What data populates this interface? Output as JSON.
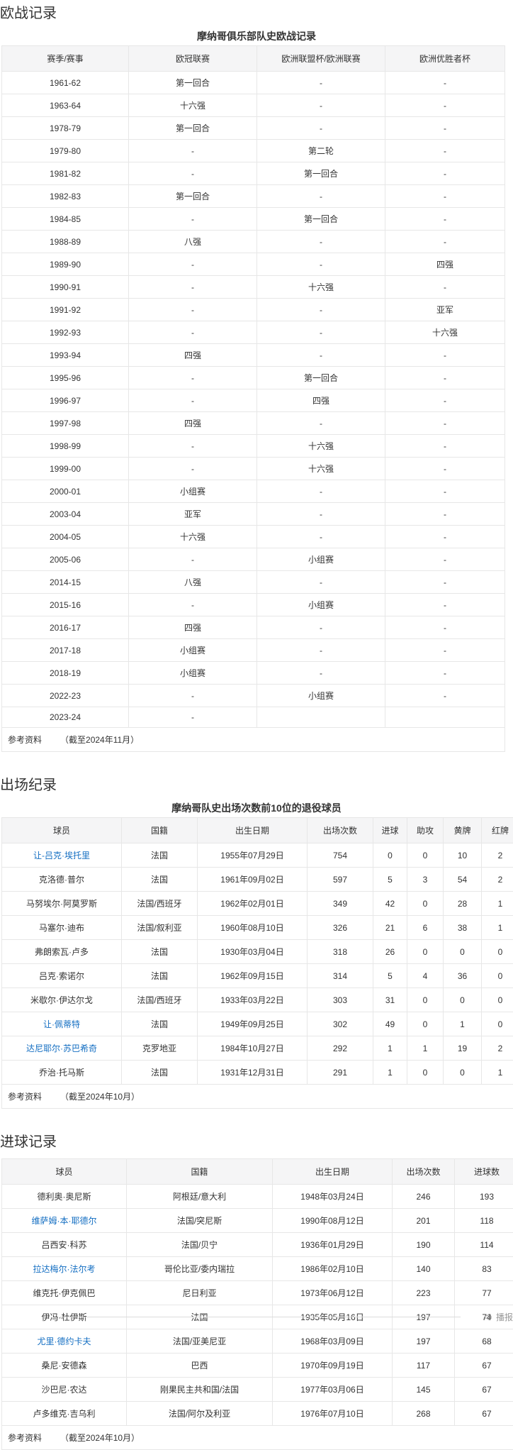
{
  "colors": {
    "link": "#136ec2",
    "header_bg": "#f5f5f6",
    "border": "#e7e7e7",
    "text": "#333333",
    "muted": "#999999"
  },
  "sections": [
    {
      "heading": "欧战记录",
      "caption": "摩纳哥俱乐部队史欧战记录",
      "columns": [
        "赛季/赛事",
        "欧冠联赛",
        "欧洲联盟杯/欧洲联赛",
        "欧洲优胜者杯"
      ],
      "rows": [
        {
          "cells": [
            "1961-62",
            "第一回合",
            "-",
            "-"
          ]
        },
        {
          "cells": [
            "1963-64",
            "十六强",
            "-",
            "-"
          ]
        },
        {
          "cells": [
            "1978-79",
            "第一回合",
            "-",
            "-"
          ]
        },
        {
          "cells": [
            "1979-80",
            "-",
            "第二轮",
            "-"
          ]
        },
        {
          "cells": [
            "1981-82",
            "-",
            "第一回合",
            "-"
          ]
        },
        {
          "cells": [
            "1982-83",
            "第一回合",
            "-",
            "-"
          ]
        },
        {
          "cells": [
            "1984-85",
            "-",
            "第一回合",
            "-"
          ]
        },
        {
          "cells": [
            "1988-89",
            "八强",
            "-",
            "-"
          ]
        },
        {
          "cells": [
            "1989-90",
            "-",
            "-",
            "四强"
          ]
        },
        {
          "cells": [
            "1990-91",
            "-",
            "十六强",
            "-"
          ]
        },
        {
          "cells": [
            "1991-92",
            "-",
            "-",
            "亚军"
          ]
        },
        {
          "cells": [
            "1992-93",
            "-",
            "-",
            "十六强"
          ]
        },
        {
          "cells": [
            "1993-94",
            "四强",
            "-",
            "-"
          ]
        },
        {
          "cells": [
            "1995-96",
            "-",
            "第一回合",
            "-"
          ]
        },
        {
          "cells": [
            "1996-97",
            "-",
            "四强",
            "-"
          ]
        },
        {
          "cells": [
            "1997-98",
            "四强",
            "-",
            "-"
          ]
        },
        {
          "cells": [
            "1998-99",
            "-",
            "十六强",
            "-"
          ]
        },
        {
          "cells": [
            "1999-00",
            "-",
            "十六强",
            "-"
          ]
        },
        {
          "cells": [
            "2000-01",
            "小组赛",
            "-",
            "-"
          ]
        },
        {
          "cells": [
            "2003-04",
            "亚军",
            "-",
            "-"
          ]
        },
        {
          "cells": [
            "2004-05",
            "十六强",
            "-",
            "-"
          ]
        },
        {
          "cells": [
            "2005-06",
            "-",
            "小组赛",
            "-"
          ]
        },
        {
          "cells": [
            "2014-15",
            "八强",
            "-",
            "-"
          ]
        },
        {
          "cells": [
            "2015-16",
            "-",
            "小组赛",
            "-"
          ]
        },
        {
          "cells": [
            "2016-17",
            "四强",
            "-",
            "-"
          ]
        },
        {
          "cells": [
            "2017-18",
            "小组赛",
            "-",
            "-"
          ]
        },
        {
          "cells": [
            "2018-19",
            "小组赛",
            "-",
            "-"
          ]
        },
        {
          "cells": [
            "2022-23",
            "-",
            "小组赛",
            "-"
          ]
        },
        {
          "cells": [
            "2023-24",
            "-",
            "",
            ""
          ]
        }
      ],
      "footer_label": "参考资料",
      "footer_note": "（截至2024年11月）"
    },
    {
      "heading": "出场纪录",
      "caption": "摩纳哥队史出场次数前10位的退役球员",
      "columns": [
        "球员",
        "国籍",
        "出生日期",
        "出场次数",
        "进球",
        "助攻",
        "黄牌",
        "红牌"
      ],
      "rows": [
        {
          "cells": [
            "让-吕克·埃托里",
            "法国",
            "1955年07月29日",
            "754",
            "0",
            "0",
            "10",
            "2"
          ],
          "link": true
        },
        {
          "cells": [
            "克洛德·普尔",
            "法国",
            "1961年09月02日",
            "597",
            "5",
            "3",
            "54",
            "2"
          ]
        },
        {
          "cells": [
            "马努埃尔·阿莫罗斯",
            "法国/西班牙",
            "1962年02月01日",
            "349",
            "42",
            "0",
            "28",
            "1"
          ]
        },
        {
          "cells": [
            "马塞尔·迪布",
            "法国/叙利亚",
            "1960年08月10日",
            "326",
            "21",
            "6",
            "38",
            "1"
          ]
        },
        {
          "cells": [
            "弗朗索瓦·卢多",
            "法国",
            "1930年03月04日",
            "318",
            "26",
            "0",
            "0",
            "0"
          ]
        },
        {
          "cells": [
            "吕克·索诺尔",
            "法国",
            "1962年09月15日",
            "314",
            "5",
            "4",
            "36",
            "0"
          ]
        },
        {
          "cells": [
            "米歇尔·伊达尔戈",
            "法国/西班牙",
            "1933年03月22日",
            "303",
            "31",
            "0",
            "0",
            "0"
          ]
        },
        {
          "cells": [
            "让·佩蒂特",
            "法国",
            "1949年09月25日",
            "302",
            "49",
            "0",
            "1",
            "0"
          ],
          "link": true
        },
        {
          "cells": [
            "达尼耶尔·苏巴希奇",
            "克罗地亚",
            "1984年10月27日",
            "292",
            "1",
            "1",
            "19",
            "2"
          ],
          "link": true
        },
        {
          "cells": [
            "乔治·托马斯",
            "法国",
            "1931年12月31日",
            "291",
            "1",
            "0",
            "0",
            "1"
          ]
        }
      ],
      "footer_label": "参考资料",
      "footer_note": "（截至2024年10月）"
    },
    {
      "heading": "进球记录",
      "caption": "",
      "columns": [
        "球员",
        "国籍",
        "出生日期",
        "出场次数",
        "进球数"
      ],
      "rows": [
        {
          "cells": [
            "德利奥·奥尼斯",
            "阿根廷/意大利",
            "1948年03月24日",
            "246",
            "193"
          ]
        },
        {
          "cells": [
            "维萨姆·本·耶德尔",
            "法国/突尼斯",
            "1990年08月12日",
            "201",
            "118"
          ],
          "link": true
        },
        {
          "cells": [
            "吕西安·科苏",
            "法国/贝宁",
            "1936年01月29日",
            "190",
            "114"
          ]
        },
        {
          "cells": [
            "拉达梅尔·法尔考",
            "哥伦比亚/委内瑞拉",
            "1986年02月10日",
            "140",
            "83"
          ],
          "link": true
        },
        {
          "cells": [
            "维克托·伊克佩巴",
            "尼日利亚",
            "1973年06月12日",
            "223",
            "77"
          ]
        },
        {
          "cells": [
            "伊冯·杜伊斯",
            "法国",
            "1935年05月16日",
            "197",
            "74"
          ]
        },
        {
          "cells": [
            "尤里·德约卡夫",
            "法国/亚美尼亚",
            "1968年03月09日",
            "197",
            "68"
          ],
          "link": true
        },
        {
          "cells": [
            "桑尼·安德森",
            "巴西",
            "1970年09月19日",
            "117",
            "67"
          ]
        },
        {
          "cells": [
            "沙巴尼·农达",
            "刚果民主共和国/法国",
            "1977年03月06日",
            "145",
            "67"
          ]
        },
        {
          "cells": [
            "卢多维克·吉乌利",
            "法国/阿尔及利亚",
            "1976年07月10日",
            "268",
            "67"
          ]
        }
      ],
      "footer_label": "参考资料",
      "footer_note": "（截至2024年10月）"
    }
  ],
  "readaloud": {
    "label": "播报",
    "icon": "speaker-icon"
  }
}
